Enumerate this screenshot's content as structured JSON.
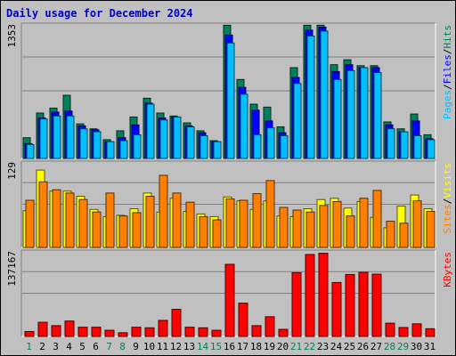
{
  "title": "Daily usage for December 2024",
  "colors": {
    "hits": "#00805c",
    "files": "#0000ff",
    "pages": "#00c0ff",
    "visits": "#ffff00",
    "sites": "#ff8000",
    "kbytes": "#ff0000",
    "weekend_label": "#00805c",
    "weekday_label": "#000000"
  },
  "chart_data": [
    {
      "type": "bar",
      "panel": "hits-files-pages",
      "ymax_label": "1353",
      "ylim": [
        0,
        1353
      ],
      "grid": true,
      "categories": [
        "1",
        "2",
        "3",
        "4",
        "5",
        "6",
        "7",
        "8",
        "9",
        "10",
        "11",
        "12",
        "13",
        "14",
        "15",
        "16",
        "17",
        "18",
        "19",
        "20",
        "21",
        "22",
        "23",
        "24",
        "25",
        "26",
        "27",
        "28",
        "29",
        "30",
        "31"
      ],
      "legend_parts": [
        "Pages",
        "/",
        "Files",
        "/",
        "Hits"
      ],
      "series": [
        {
          "name": "Hits",
          "color": "#00805c",
          "values": [
            210,
            460,
            510,
            640,
            350,
            300,
            190,
            280,
            420,
            610,
            460,
            430,
            360,
            280,
            180,
            1350,
            800,
            550,
            520,
            320,
            920,
            1350,
            1350,
            950,
            1000,
            940,
            940,
            370,
            300,
            450,
            240
          ]
        },
        {
          "name": "Files",
          "color": "#0000ff",
          "values": [
            150,
            410,
            470,
            480,
            330,
            290,
            170,
            210,
            340,
            560,
            410,
            420,
            330,
            260,
            170,
            1250,
            720,
            490,
            380,
            260,
            820,
            1300,
            1330,
            880,
            950,
            920,
            920,
            340,
            270,
            380,
            200
          ]
        },
        {
          "name": "Pages",
          "color": "#00c0ff",
          "values": [
            140,
            400,
            430,
            430,
            300,
            270,
            170,
            180,
            240,
            550,
            390,
            420,
            320,
            230,
            170,
            1170,
            650,
            240,
            310,
            230,
            760,
            1240,
            1290,
            800,
            890,
            920,
            870,
            300,
            270,
            230,
            190
          ]
        }
      ]
    },
    {
      "type": "bar",
      "panel": "visits-sites",
      "ymax_label": "129",
      "ylim": [
        0,
        129
      ],
      "grid": true,
      "categories": [
        "1",
        "2",
        "3",
        "4",
        "5",
        "6",
        "7",
        "8",
        "9",
        "10",
        "11",
        "12",
        "13",
        "14",
        "15",
        "16",
        "17",
        "18",
        "19",
        "20",
        "21",
        "22",
        "23",
        "24",
        "25",
        "26",
        "27",
        "28",
        "29",
        "30",
        "31"
      ],
      "legend_parts": [
        "Sites",
        "/",
        "Visits"
      ],
      "series": [
        {
          "name": "Visits",
          "color": "#ffff00",
          "values": [
            56,
            118,
            86,
            86,
            78,
            58,
            47,
            49,
            59,
            83,
            54,
            75,
            55,
            51,
            47,
            77,
            71,
            58,
            71,
            48,
            47,
            59,
            73,
            75,
            60,
            70,
            46,
            30,
            63,
            80,
            59
          ]
        },
        {
          "name": "Sites",
          "color": "#ff8000",
          "values": [
            72,
            100,
            88,
            83,
            73,
            54,
            83,
            48,
            53,
            78,
            110,
            83,
            69,
            47,
            42,
            74,
            72,
            82,
            102,
            61,
            57,
            54,
            64,
            70,
            48,
            75,
            87,
            40,
            37,
            71,
            55
          ]
        }
      ]
    },
    {
      "type": "bar",
      "panel": "kbytes",
      "ymax_label": "137167",
      "ylim": [
        0,
        137167
      ],
      "grid": true,
      "categories": [
        "1",
        "2",
        "3",
        "4",
        "5",
        "6",
        "7",
        "8",
        "9",
        "10",
        "11",
        "12",
        "13",
        "14",
        "15",
        "16",
        "17",
        "18",
        "19",
        "20",
        "21",
        "22",
        "23",
        "24",
        "25",
        "26",
        "27",
        "28",
        "29",
        "30",
        "31"
      ],
      "legend_parts": [
        "KBytes"
      ],
      "series": [
        {
          "name": "KBytes",
          "color": "#ff0000",
          "values": [
            8000,
            23000,
            17500,
            25000,
            15000,
            15000,
            10000,
            6000,
            15000,
            14000,
            26000,
            44000,
            15000,
            14000,
            10000,
            117000,
            54000,
            17500,
            32000,
            11500,
            103500,
            133000,
            135000,
            87500,
            100500,
            104000,
            101000,
            21500,
            14500,
            20500,
            12500
          ]
        }
      ]
    }
  ],
  "x_axis": {
    "labels": [
      "1",
      "2",
      "3",
      "4",
      "5",
      "6",
      "7",
      "8",
      "9",
      "10",
      "11",
      "12",
      "13",
      "14",
      "15",
      "16",
      "17",
      "18",
      "19",
      "20",
      "21",
      "22",
      "23",
      "24",
      "25",
      "26",
      "27",
      "28",
      "29",
      "30",
      "31"
    ],
    "weekend": [
      1,
      7,
      8,
      14,
      15,
      21,
      22,
      28,
      29
    ]
  }
}
